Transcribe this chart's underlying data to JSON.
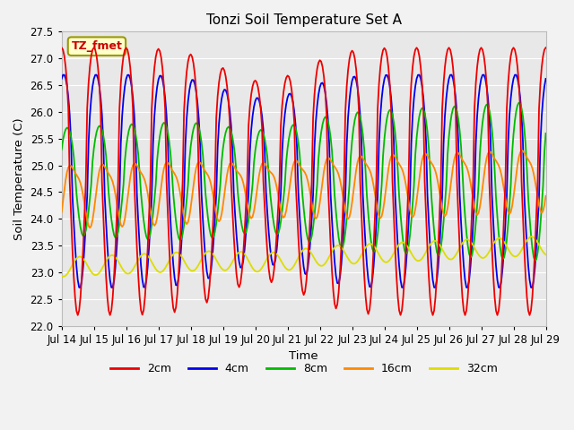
{
  "title": "Tonzi Soil Temperature Set A",
  "xlabel": "Time",
  "ylabel": "Soil Temperature (C)",
  "ylim": [
    22.0,
    27.5
  ],
  "xlim": [
    0,
    360
  ],
  "colors": {
    "2cm": "#ee0000",
    "4cm": "#0000ee",
    "8cm": "#00bb00",
    "16cm": "#ff8800",
    "32cm": "#dddd00"
  },
  "legend_label": "TZ_fmet",
  "legend_box_facecolor": "#ffffcc",
  "legend_box_edgecolor": "#999900",
  "plot_bg": "#e8e8e8",
  "fig_bg": "#f2f2f2",
  "grid_color": "#ffffff",
  "tick_labels": [
    "Jul 14",
    "Jul 15",
    "Jul 16",
    "Jul 17",
    "Jul 18",
    "Jul 19",
    "Jul 20",
    "Jul 21",
    "Jul 22",
    "Jul 23",
    "Jul 24",
    "Jul 25",
    "Jul 26",
    "Jul 27",
    "Jul 28",
    "Jul 29"
  ],
  "tick_positions": [
    0,
    24,
    48,
    72,
    96,
    120,
    144,
    168,
    192,
    216,
    240,
    264,
    288,
    312,
    336,
    360
  ],
  "yticks": [
    22.0,
    22.5,
    23.0,
    23.5,
    24.0,
    24.5,
    25.0,
    25.5,
    26.0,
    26.5,
    27.0,
    27.5
  ]
}
